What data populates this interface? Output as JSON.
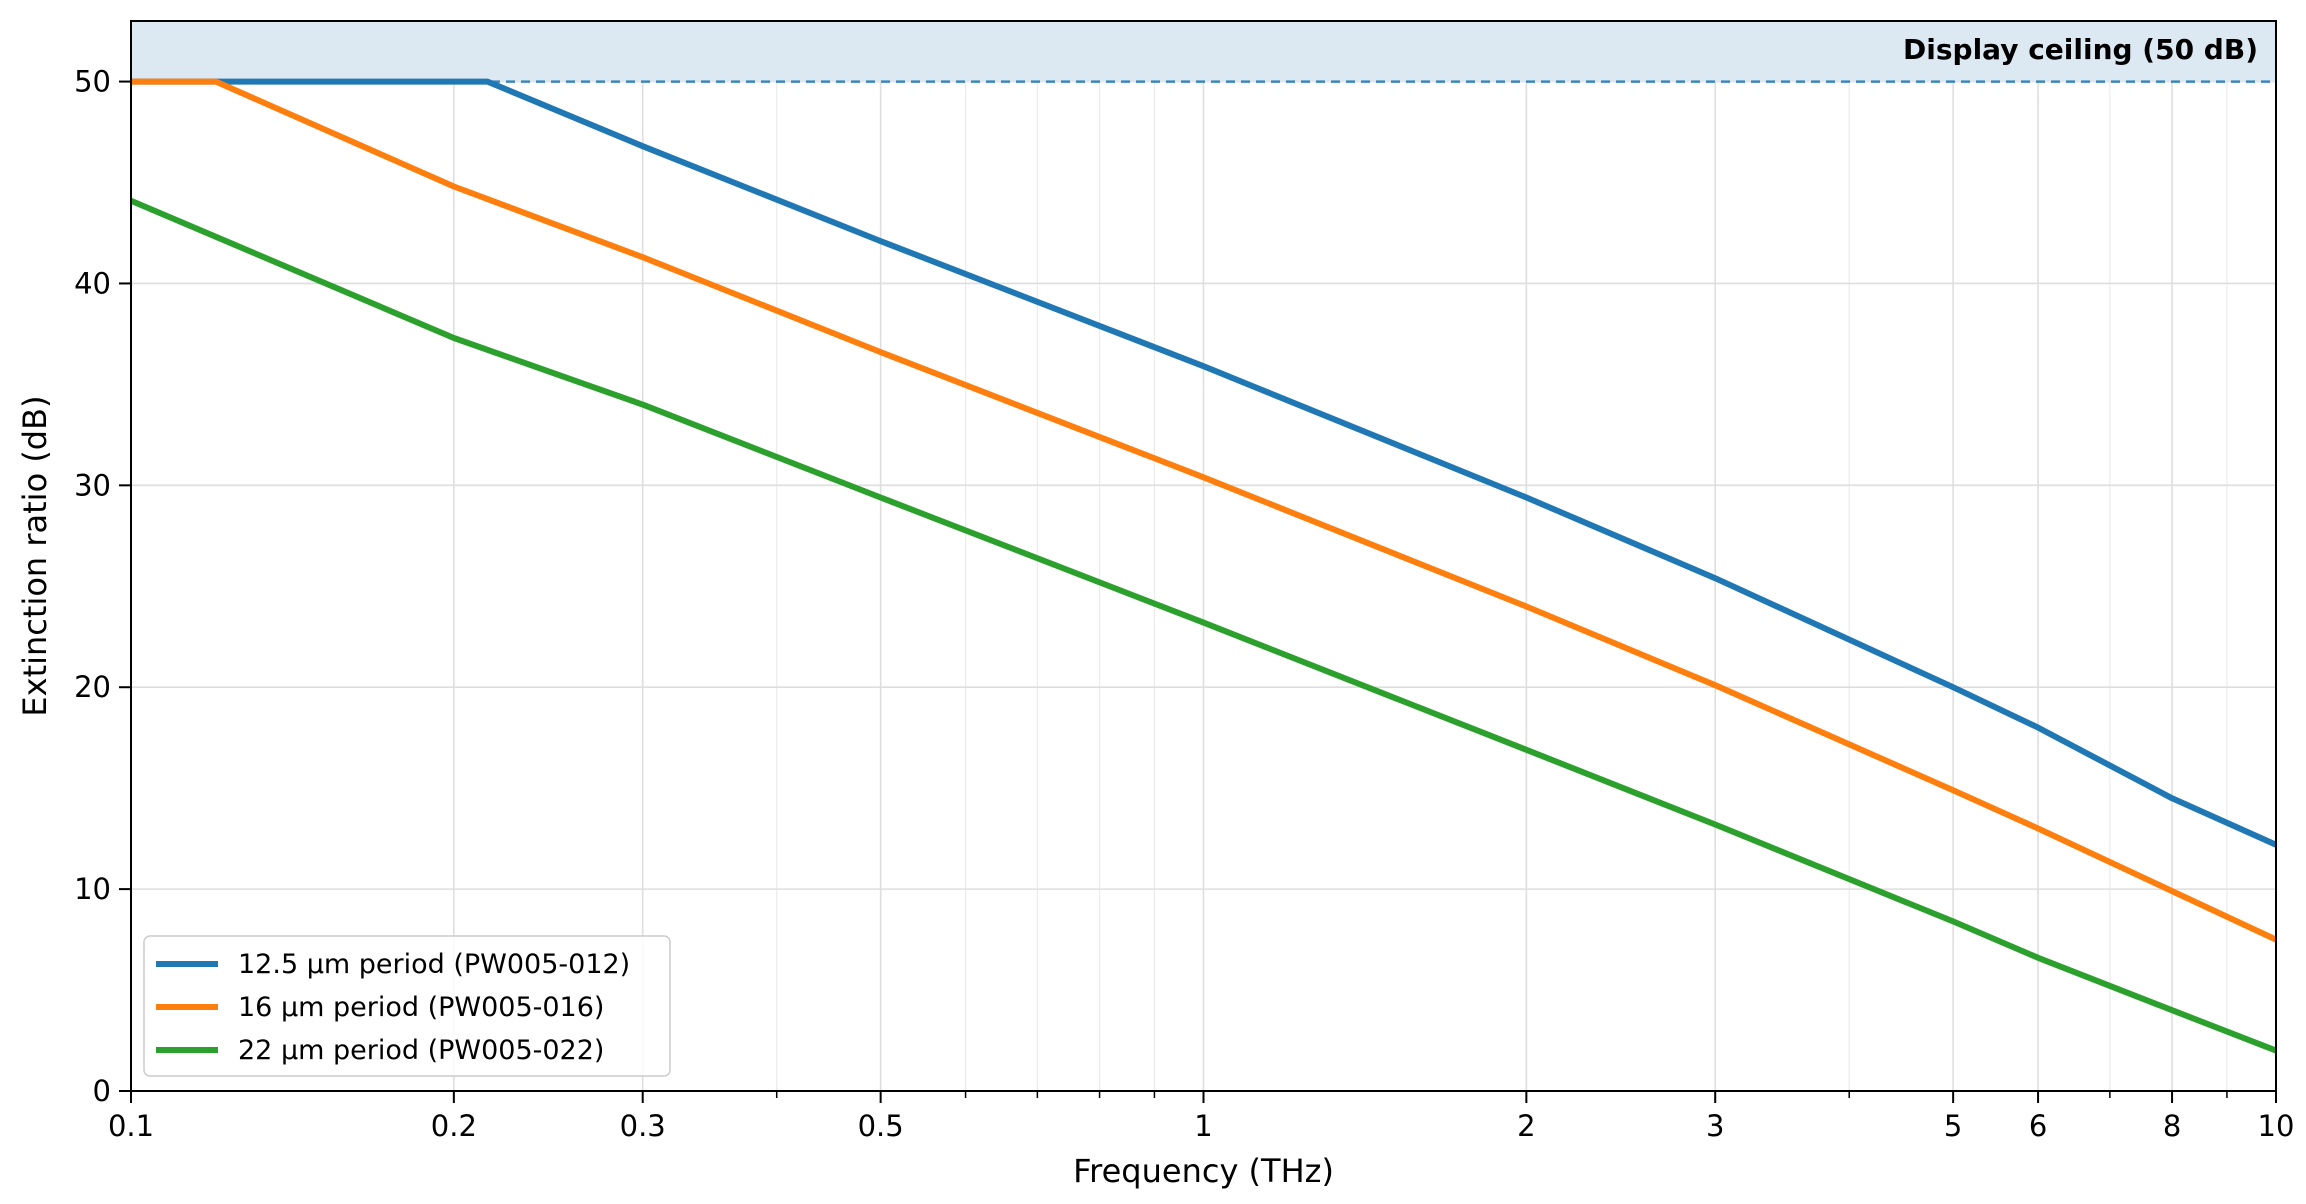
{
  "chart_data": {
    "type": "line",
    "xlabel": "Frequency (THz)",
    "ylabel": "Extinction ratio (dB)",
    "xscale": "log",
    "xlim": [
      0.1,
      10
    ],
    "ylim": [
      0,
      53
    ],
    "x_ticks": [
      0.1,
      0.2,
      0.3,
      0.5,
      1,
      2,
      3,
      5,
      6,
      8,
      10
    ],
    "x_tick_labels": [
      "0.1",
      "0.2",
      "0.3",
      "0.5",
      "1",
      "2",
      "3",
      "5",
      "6",
      "8",
      "10"
    ],
    "y_ticks": [
      0,
      10,
      20,
      30,
      40,
      50
    ],
    "y_tick_labels": [
      "0",
      "10",
      "20",
      "30",
      "40",
      "50"
    ],
    "grid": true,
    "legend_position": "lower-left",
    "ceiling": {
      "value": 50,
      "label": "Display ceiling (50 dB)",
      "color": "#1f77b4",
      "band_color": "#dce9f2"
    },
    "series": [
      {
        "name": "12.5 µm period (PW005-012)",
        "color": "#1f77b4",
        "x": [
          0.1,
          0.215,
          0.3,
          0.5,
          1,
          2,
          3,
          5,
          6,
          8,
          10
        ],
        "y": [
          50,
          50,
          46.8,
          42.1,
          35.9,
          29.4,
          25.4,
          20.0,
          18.0,
          14.5,
          12.2
        ]
      },
      {
        "name": "16 µm period (PW005-016)",
        "color": "#ff7f0e",
        "x": [
          0.1,
          0.12,
          0.2,
          0.3,
          0.5,
          1,
          2,
          3,
          5,
          6,
          8,
          10
        ],
        "y": [
          50,
          50,
          44.8,
          41.3,
          36.6,
          30.4,
          24.0,
          20.1,
          14.9,
          13.0,
          9.9,
          7.5
        ]
      },
      {
        "name": "22 µm period (PW005-022)",
        "color": "#2ca02c",
        "x": [
          0.1,
          0.2,
          0.3,
          0.5,
          1,
          2,
          3,
          5,
          6,
          8,
          10
        ],
        "y": [
          44.1,
          37.3,
          34.0,
          29.4,
          23.2,
          16.9,
          13.2,
          8.4,
          6.6,
          4.0,
          2.0
        ]
      }
    ]
  }
}
